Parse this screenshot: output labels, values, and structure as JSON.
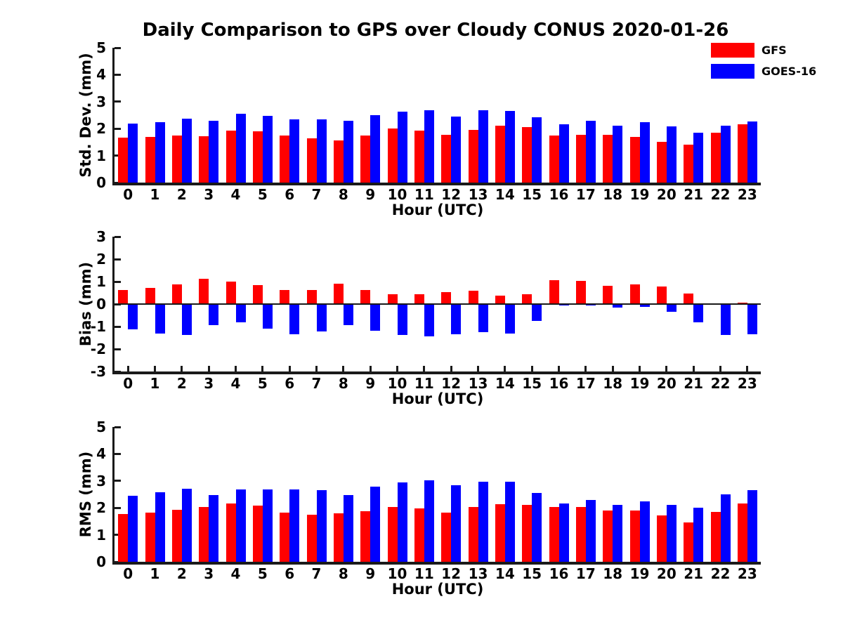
{
  "title": "Daily Comparison to GPS over Cloudy CONUS 2020-01-26",
  "legend": {
    "position": "top-right",
    "items": [
      {
        "label": "GFS",
        "color": "#ff0000"
      },
      {
        "label": "GOES-16",
        "color": "#0000ff"
      }
    ]
  },
  "colors": {
    "gfs": "#ff0000",
    "goes16": "#0000ff",
    "axis": "#1a1a1a",
    "background": "#ffffff"
  },
  "chart_data": [
    {
      "type": "bar",
      "title": "Daily Comparison to GPS over Cloudy CONUS 2020-01-26",
      "xlabel": "Hour (UTC)",
      "ylabel": "Std. Dev. (mm)",
      "ylim": [
        0,
        5
      ],
      "yticks": [
        0,
        1,
        2,
        3,
        4,
        5
      ],
      "grid": false,
      "categories": [
        "0",
        "1",
        "2",
        "3",
        "4",
        "5",
        "6",
        "7",
        "8",
        "9",
        "10",
        "11",
        "12",
        "13",
        "14",
        "15",
        "16",
        "17",
        "18",
        "19",
        "20",
        "21",
        "22",
        "23"
      ],
      "series": [
        {
          "name": "GFS",
          "color": "#ff0000",
          "values": [
            1.67,
            1.7,
            1.75,
            1.72,
            1.93,
            1.9,
            1.75,
            1.65,
            1.55,
            1.75,
            2.0,
            1.93,
            1.76,
            1.95,
            2.1,
            2.05,
            1.75,
            1.78,
            1.77,
            1.68,
            1.52,
            1.4,
            1.86,
            2.16
          ]
        },
        {
          "name": "GOES-16",
          "color": "#0000ff",
          "values": [
            2.2,
            2.23,
            2.36,
            2.3,
            2.54,
            2.47,
            2.34,
            2.34,
            2.28,
            2.5,
            2.63,
            2.68,
            2.45,
            2.68,
            2.66,
            2.43,
            2.17,
            2.3,
            2.12,
            2.24,
            2.08,
            1.84,
            2.1,
            2.26
          ]
        }
      ]
    },
    {
      "type": "bar",
      "title": "",
      "xlabel": "Hour (UTC)",
      "ylabel": "Bias (mm)",
      "ylim": [
        -3,
        3
      ],
      "yticks": [
        -3,
        -2,
        -1,
        0,
        1,
        2,
        3
      ],
      "grid": false,
      "categories": [
        "0",
        "1",
        "2",
        "3",
        "4",
        "5",
        "6",
        "7",
        "8",
        "9",
        "10",
        "11",
        "12",
        "13",
        "14",
        "15",
        "16",
        "17",
        "18",
        "19",
        "20",
        "21",
        "22",
        "23"
      ],
      "series": [
        {
          "name": "GFS",
          "color": "#ff0000",
          "values": [
            0.63,
            0.72,
            0.86,
            1.12,
            1.0,
            0.85,
            0.62,
            0.62,
            0.91,
            0.61,
            0.45,
            0.43,
            0.52,
            0.6,
            0.38,
            0.45,
            1.05,
            1.02,
            0.8,
            0.88,
            0.78,
            0.48,
            0.04,
            0.06
          ]
        },
        {
          "name": "GOES-16",
          "color": "#0000ff",
          "values": [
            -1.12,
            -1.3,
            -1.36,
            -0.93,
            -0.8,
            -1.08,
            -1.35,
            -1.23,
            -0.93,
            -1.2,
            -1.36,
            -1.45,
            -1.35,
            -1.25,
            -1.31,
            -0.76,
            -0.07,
            -0.05,
            -0.15,
            -0.12,
            -0.35,
            -0.8,
            -1.36,
            -1.33
          ]
        }
      ]
    },
    {
      "type": "bar",
      "title": "",
      "xlabel": "Hour (UTC)",
      "ylabel": "RMS (mm)",
      "ylim": [
        0,
        5
      ],
      "yticks": [
        0,
        1,
        2,
        3,
        4,
        5
      ],
      "grid": false,
      "categories": [
        "0",
        "1",
        "2",
        "3",
        "4",
        "5",
        "6",
        "7",
        "8",
        "9",
        "10",
        "11",
        "12",
        "13",
        "14",
        "15",
        "16",
        "17",
        "18",
        "19",
        "20",
        "21",
        "22",
        "23"
      ],
      "series": [
        {
          "name": "GFS",
          "color": "#ff0000",
          "values": [
            1.78,
            1.83,
            1.93,
            2.03,
            2.17,
            2.08,
            1.83,
            1.75,
            1.8,
            1.87,
            2.03,
            1.97,
            1.83,
            2.03,
            2.13,
            2.1,
            2.03,
            2.02,
            1.91,
            1.89,
            1.72,
            1.45,
            1.86,
            2.15
          ]
        },
        {
          "name": "GOES-16",
          "color": "#0000ff",
          "values": [
            2.45,
            2.57,
            2.7,
            2.47,
            2.67,
            2.67,
            2.67,
            2.65,
            2.47,
            2.78,
            2.95,
            3.03,
            2.83,
            2.97,
            2.96,
            2.54,
            2.17,
            2.3,
            2.12,
            2.23,
            2.1,
            2.0,
            2.51,
            2.65
          ]
        }
      ]
    }
  ]
}
